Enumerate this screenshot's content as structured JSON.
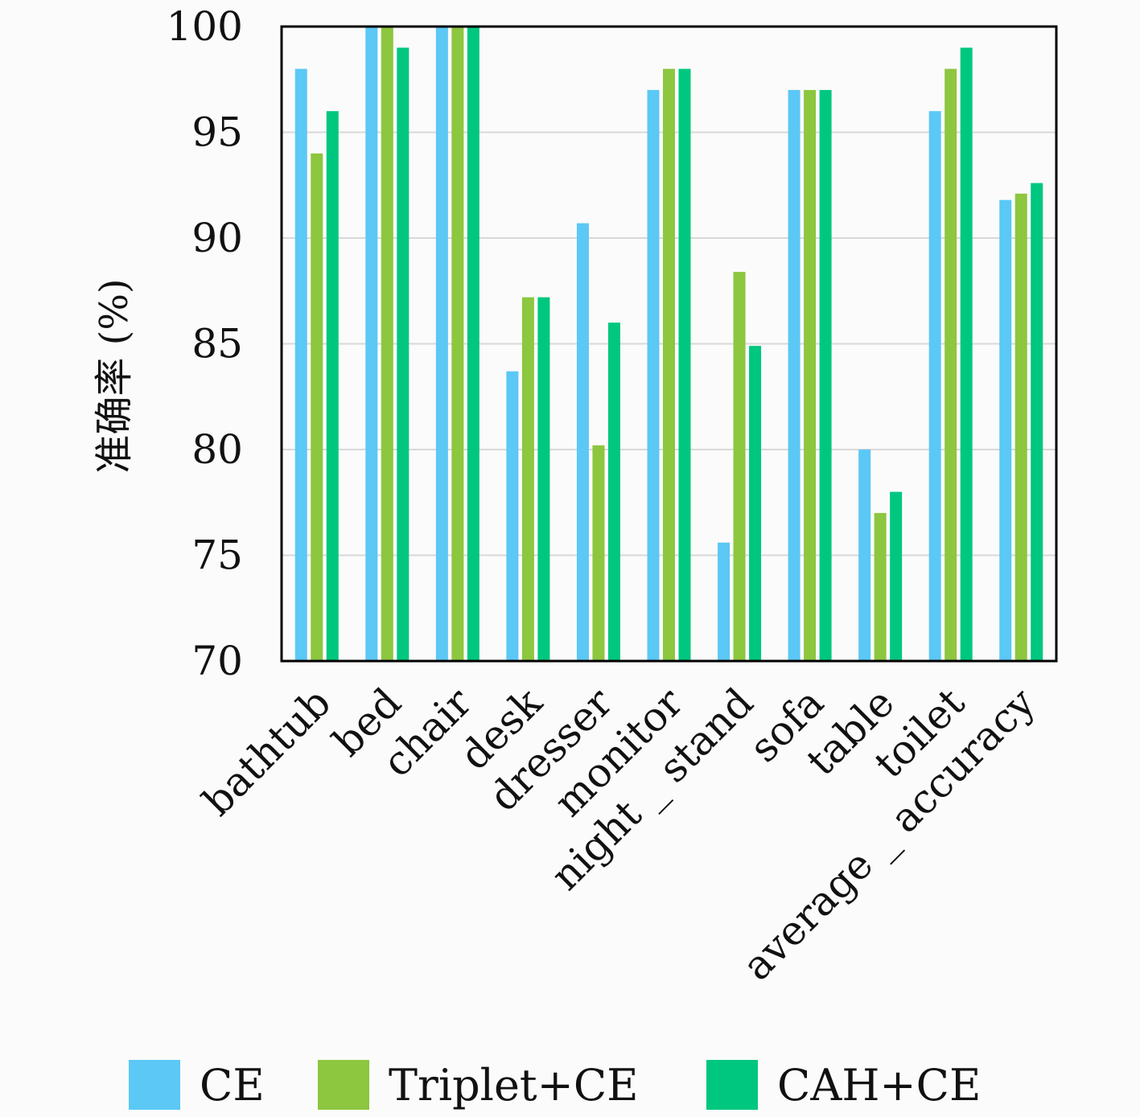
{
  "chart_data": {
    "type": "bar",
    "ylabel": "准确率 (%)",
    "ylim": [
      70,
      100
    ],
    "yticks": [
      70,
      75,
      80,
      85,
      90,
      95,
      100
    ],
    "grid": "horizontal",
    "legend_position": "bottom",
    "categories": [
      "bathtub",
      "bed",
      "chair",
      "desk",
      "dresser",
      "monitor",
      "night _ stand",
      "sofa",
      "table",
      "toilet",
      "average _ accuracy"
    ],
    "series": [
      {
        "name": "CE",
        "color": "#5bc8f5",
        "values": [
          98.0,
          100.0,
          100.0,
          83.7,
          90.7,
          97.0,
          75.6,
          97.0,
          80.0,
          96.0,
          91.8
        ]
      },
      {
        "name": "Triplet+CE",
        "color": "#8dc63f",
        "values": [
          94.0,
          100.0,
          100.0,
          87.2,
          80.2,
          98.0,
          88.4,
          97.0,
          77.0,
          98.0,
          92.1
        ]
      },
      {
        "name": "CAH+CE",
        "color": "#00c77f",
        "values": [
          96.0,
          99.0,
          100.0,
          87.2,
          86.0,
          98.0,
          84.9,
          97.0,
          78.0,
          99.0,
          92.6
        ]
      }
    ]
  }
}
